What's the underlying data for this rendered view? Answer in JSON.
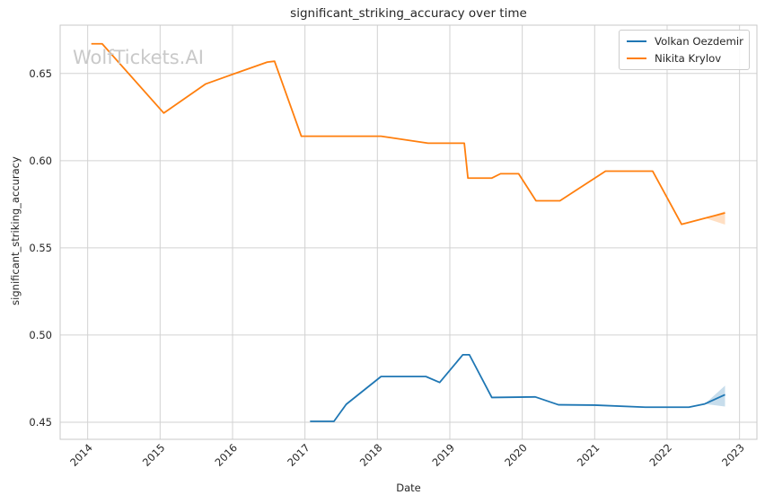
{
  "watermark": "WolfTickets.AI",
  "legend": {
    "entries": [
      "Volkan Oezdemir",
      "Nikita Krylov"
    ]
  },
  "chart_data": {
    "type": "line",
    "title": "significant_striking_accuracy over time",
    "xlabel": "Date",
    "ylabel": "significant_striking_accuracy",
    "xlim": [
      2013.62,
      2023.24
    ],
    "ylim": [
      0.4402,
      0.6777
    ],
    "x_ticks": [
      2014,
      2015,
      2016,
      2017,
      2018,
      2019,
      2020,
      2021,
      2022,
      2023
    ],
    "y_ticks": [
      0.45,
      0.5,
      0.55,
      0.6,
      0.65
    ],
    "grid": true,
    "legend_position": "upper right",
    "colors": {
      "grid": "#d2d2d2",
      "frame": "#c9c9c9",
      "text": "#262626",
      "watermark": "#c9c9c9",
      "blue": "#1f77b4",
      "orange": "#ff7f0e"
    },
    "series": [
      {
        "name": "Volkan Oezdemir",
        "color": "#1f77b4",
        "x": [
          2017.07,
          2017.4,
          2017.57,
          2018.05,
          2018.67,
          2018.86,
          2019.18,
          2019.27,
          2019.58,
          2020.18,
          2020.5,
          2021.0,
          2021.7,
          2022.3,
          2022.52,
          2022.8
        ],
        "y": [
          0.4505,
          0.4505,
          0.4603,
          0.4762,
          0.4762,
          0.4728,
          0.4887,
          0.4887,
          0.4642,
          0.4645,
          0.46,
          0.4598,
          0.4586,
          0.4586,
          0.4605,
          0.4658
        ],
        "band": {
          "x": [
            2022.52,
            2022.8
          ],
          "upper": [
            0.4605,
            0.471
          ],
          "lower": [
            0.4605,
            0.459
          ]
        }
      },
      {
        "name": "Nikita Krylov",
        "color": "#ff7f0e",
        "x": [
          2014.05,
          2014.2,
          2015.05,
          2015.63,
          2016.0,
          2016.48,
          2016.58,
          2016.95,
          2018.05,
          2018.7,
          2019.2,
          2019.25,
          2019.58,
          2019.7,
          2019.95,
          2020.19,
          2020.52,
          2021.15,
          2021.8,
          2022.2,
          2022.8
        ],
        "y": [
          0.667,
          0.667,
          0.6273,
          0.644,
          0.6495,
          0.6565,
          0.657,
          0.614,
          0.614,
          0.61,
          0.61,
          0.59,
          0.59,
          0.5925,
          0.5925,
          0.577,
          0.577,
          0.594,
          0.594,
          0.5635,
          0.57
        ],
        "band": {
          "x": [
            2022.53,
            2022.8
          ],
          "upper": [
            0.567,
            0.571
          ],
          "lower": [
            0.567,
            0.5633
          ]
        }
      }
    ]
  }
}
